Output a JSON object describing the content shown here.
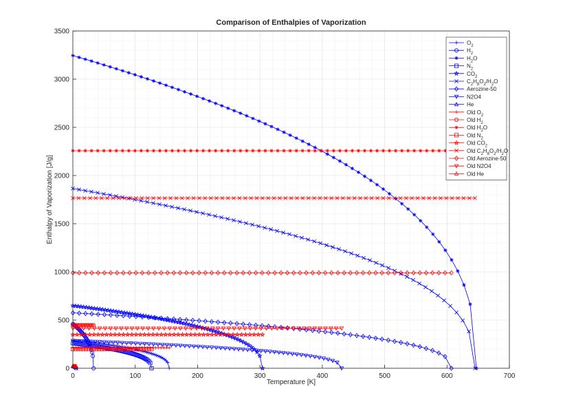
{
  "chart_data": {
    "type": "line",
    "title": "Comparison of Enthalpies of Vaporization",
    "xlabel": "Temperature [K]",
    "ylabel": "Enthalpy of Vaporization [J/g]",
    "xlim": [
      0,
      700
    ],
    "ylim": [
      0,
      3500
    ],
    "xticks": [
      0,
      100,
      200,
      300,
      400,
      500,
      600,
      700
    ],
    "yticks": [
      0,
      500,
      1000,
      1500,
      2000,
      2500,
      3000,
      3500
    ],
    "xtick_labels": [
      "0",
      "100",
      "200",
      "300",
      "400",
      "500",
      "600",
      "700"
    ],
    "ytick_labels": [
      "0",
      "500",
      "1000",
      "1500",
      "2000",
      "2500",
      "3000",
      "3500"
    ],
    "grid": true,
    "legend_position": "top-right",
    "series": [
      {
        "name": "O₂",
        "label_base": "O",
        "label_sub": "2",
        "label_tail": "",
        "color": "#0000ff",
        "marker": "plus",
        "kind": "curve",
        "tmax": 154.6,
        "h0": 290,
        "n": 60
      },
      {
        "name": "H₂",
        "label_base": "H",
        "label_sub": "2",
        "label_tail": "",
        "color": "#0000ff",
        "marker": "circle",
        "kind": "curve",
        "tmax": 33.2,
        "h0": 460,
        "n": 30
      },
      {
        "name": "H₂O",
        "label_base": "H",
        "label_sub": "2",
        "label_tail": "O",
        "color": "#0000ff",
        "marker": "star",
        "kind": "curve",
        "tmax": 647.1,
        "h0": 3245,
        "n": 65
      },
      {
        "name": "N₂",
        "label_base": "N",
        "label_sub": "2",
        "label_tail": "",
        "color": "#0000ff",
        "marker": "square",
        "kind": "curve",
        "tmax": 126.2,
        "h0": 260,
        "n": 60
      },
      {
        "name": "CO₂",
        "label_base": "CO",
        "label_sub": "2",
        "label_tail": "",
        "color": "#0000ff",
        "marker": "pentagram",
        "kind": "curve",
        "tmax": 304.1,
        "h0": 650,
        "n": 70
      },
      {
        "name": "C₂H₈O₂/H₂O",
        "label_html": "C<tspan baseline-shift=\"sub\" font-size=\"6\">2</tspan>H<tspan baseline-shift=\"sub\" font-size=\"6\">8</tspan>O<tspan baseline-shift=\"sub\" font-size=\"6\">2</tspan>/H<tspan baseline-shift=\"sub\" font-size=\"6\">2</tspan>O",
        "color": "#0000ff",
        "marker": "x",
        "kind": "curve",
        "tmax": 645,
        "h0": 1865,
        "n": 65
      },
      {
        "name": "Aerozine-50",
        "color": "#0000ff",
        "marker": "diamond",
        "kind": "curve",
        "tmax": 607,
        "h0": 575,
        "n": 60
      },
      {
        "name": "N2O4",
        "color": "#0000ff",
        "marker": "triangle-down",
        "kind": "curve",
        "tmax": 431,
        "h0": 285,
        "n": 60
      },
      {
        "name": "He",
        "color": "#0000ff",
        "marker": "triangle-up",
        "kind": "curve",
        "tmax": 5.2,
        "h0": 21,
        "n": 8
      },
      {
        "name": "Old O₂",
        "label_base": "Old O",
        "label_sub": "2",
        "label_tail": "",
        "color": "#ff0000",
        "marker": "plus",
        "kind": "const",
        "value": 213,
        "xmax": 154.6,
        "n": 35
      },
      {
        "name": "Old H₂",
        "label_base": "Old H",
        "label_sub": "2",
        "label_tail": "",
        "color": "#ff0000",
        "marker": "circle",
        "kind": "const",
        "value": 446,
        "xmax": 33.2,
        "n": 18
      },
      {
        "name": "Old H₂O",
        "label_base": "Old H",
        "label_sub": "2",
        "label_tail": "O",
        "color": "#ff0000",
        "marker": "star",
        "kind": "const",
        "value": 2257,
        "xmax": 647.1,
        "n": 65
      },
      {
        "name": "Old N₂",
        "label_base": "Old N",
        "label_sub": "2",
        "label_tail": "",
        "color": "#ff0000",
        "marker": "square",
        "kind": "const",
        "value": 199,
        "xmax": 126.2,
        "n": 30
      },
      {
        "name": "Old CO₂",
        "label_base": "Old CO",
        "label_sub": "2",
        "label_tail": "",
        "color": "#ff0000",
        "marker": "pentagram",
        "kind": "const",
        "value": 349,
        "xmax": 304.1,
        "n": 45
      },
      {
        "name": "Old C₂H₈O₂/H₂O",
        "label_html": "Old C<tspan baseline-shift=\"sub\" font-size=\"6\">2</tspan>H<tspan baseline-shift=\"sub\" font-size=\"6\">8</tspan>O<tspan baseline-shift=\"sub\" font-size=\"6\">2</tspan>/H<tspan baseline-shift=\"sub\" font-size=\"6\">2</tspan>O",
        "color": "#ff0000",
        "marker": "x",
        "kind": "const",
        "value": 1765,
        "xmax": 645,
        "n": 70
      },
      {
        "name": "Old Aerozine-50",
        "color": "#ff0000",
        "marker": "diamond",
        "kind": "const",
        "value": 990,
        "xmax": 607,
        "n": 60
      },
      {
        "name": "Old N2O4",
        "color": "#ff0000",
        "marker": "triangle-down",
        "kind": "const",
        "value": 414,
        "xmax": 431,
        "n": 50
      },
      {
        "name": "Old He",
        "color": "#ff0000",
        "marker": "triangle-up",
        "kind": "const",
        "value": 20.9,
        "xmax": 5.2,
        "n": 6
      }
    ]
  }
}
